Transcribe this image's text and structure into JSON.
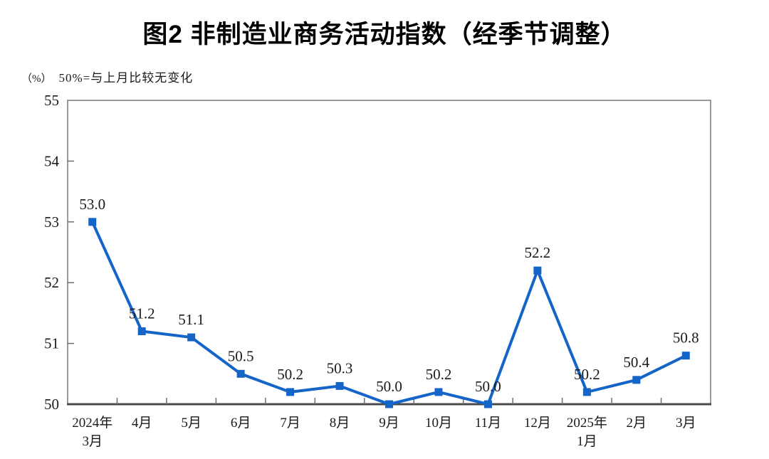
{
  "chart_data": {
    "type": "line",
    "title": "图2  非制造业商务活动指数（经季节调整）",
    "unit": "（%）",
    "note": "50%=与上月比较无变化",
    "categories": [
      "2024年\n3月",
      "4月",
      "5月",
      "6月",
      "7月",
      "8月",
      "9月",
      "10月",
      "11月",
      "12月",
      "2025年\n1月",
      "2月",
      "3月"
    ],
    "values": [
      53.0,
      51.2,
      51.1,
      50.5,
      50.2,
      50.3,
      50.0,
      50.2,
      50.0,
      52.2,
      50.2,
      50.4,
      50.8
    ],
    "ylim": [
      50,
      55
    ],
    "ytick_step": 1,
    "grid": false,
    "legend": "none",
    "marker": "square",
    "colors": {
      "line": "#1565c8",
      "marker": "#1565c8",
      "border": "#787878",
      "bottom_axis": "#4a4a4a",
      "tick": "#6e6e6e",
      "text": "#1a1a1a"
    }
  }
}
